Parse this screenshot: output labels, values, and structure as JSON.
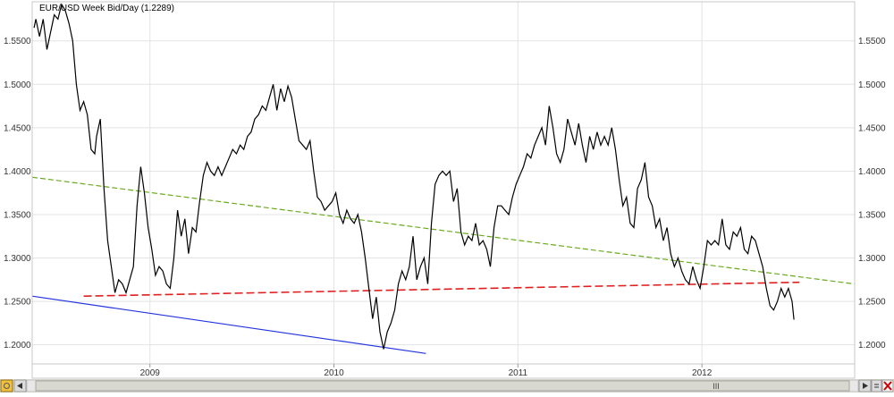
{
  "chart_data": {
    "type": "line",
    "title": "EUR/USD Week Bid/Day (1.2289)",
    "xlabel": "",
    "ylabel": "",
    "xlim": [
      2008.36,
      2012.83
    ],
    "ylim": [
      1.178,
      1.595
    ],
    "x_ticks": [
      {
        "x": 2009.0,
        "label": "2009"
      },
      {
        "x": 2010.0,
        "label": "2010"
      },
      {
        "x": 2011.0,
        "label": "2011"
      },
      {
        "x": 2012.0,
        "label": "2012"
      }
    ],
    "y_ticks": [
      {
        "y": 1.2,
        "label": "1.2000"
      },
      {
        "y": 1.25,
        "label": "1.2500"
      },
      {
        "y": 1.3,
        "label": "1.3000"
      },
      {
        "y": 1.35,
        "label": "1.3500"
      },
      {
        "y": 1.4,
        "label": "1.4000"
      },
      {
        "y": 1.45,
        "label": "1.4500"
      },
      {
        "y": 1.5,
        "label": "1.5000"
      },
      {
        "y": 1.55,
        "label": "1.5500"
      }
    ],
    "grid": true,
    "series": [
      {
        "kind": "price",
        "color": "#000000",
        "points": [
          [
            2008.37,
            1.565
          ],
          [
            2008.38,
            1.575
          ],
          [
            2008.4,
            1.555
          ],
          [
            2008.42,
            1.575
          ],
          [
            2008.44,
            1.54
          ],
          [
            2008.46,
            1.56
          ],
          [
            2008.48,
            1.58
          ],
          [
            2008.5,
            1.575
          ],
          [
            2008.52,
            1.592
          ],
          [
            2008.54,
            1.585
          ],
          [
            2008.56,
            1.57
          ],
          [
            2008.58,
            1.55
          ],
          [
            2008.6,
            1.5
          ],
          [
            2008.62,
            1.47
          ],
          [
            2008.64,
            1.48
          ],
          [
            2008.66,
            1.465
          ],
          [
            2008.68,
            1.425
          ],
          [
            2008.7,
            1.42
          ],
          [
            2008.71,
            1.44
          ],
          [
            2008.73,
            1.46
          ],
          [
            2008.75,
            1.38
          ],
          [
            2008.77,
            1.32
          ],
          [
            2008.79,
            1.29
          ],
          [
            2008.81,
            1.26
          ],
          [
            2008.83,
            1.275
          ],
          [
            2008.85,
            1.27
          ],
          [
            2008.87,
            1.26
          ],
          [
            2008.89,
            1.275
          ],
          [
            2008.91,
            1.29
          ],
          [
            2008.93,
            1.36
          ],
          [
            2008.95,
            1.405
          ],
          [
            2008.97,
            1.375
          ],
          [
            2008.99,
            1.335
          ],
          [
            2009.01,
            1.31
          ],
          [
            2009.03,
            1.28
          ],
          [
            2009.05,
            1.29
          ],
          [
            2009.07,
            1.285
          ],
          [
            2009.09,
            1.27
          ],
          [
            2009.11,
            1.265
          ],
          [
            2009.13,
            1.3
          ],
          [
            2009.15,
            1.355
          ],
          [
            2009.17,
            1.325
          ],
          [
            2009.19,
            1.345
          ],
          [
            2009.21,
            1.305
          ],
          [
            2009.23,
            1.335
          ],
          [
            2009.25,
            1.33
          ],
          [
            2009.27,
            1.365
          ],
          [
            2009.29,
            1.395
          ],
          [
            2009.31,
            1.41
          ],
          [
            2009.33,
            1.4
          ],
          [
            2009.35,
            1.395
          ],
          [
            2009.37,
            1.405
          ],
          [
            2009.39,
            1.395
          ],
          [
            2009.41,
            1.405
          ],
          [
            2009.43,
            1.415
          ],
          [
            2009.45,
            1.425
          ],
          [
            2009.47,
            1.42
          ],
          [
            2009.49,
            1.43
          ],
          [
            2009.51,
            1.425
          ],
          [
            2009.53,
            1.44
          ],
          [
            2009.55,
            1.445
          ],
          [
            2009.57,
            1.46
          ],
          [
            2009.59,
            1.465
          ],
          [
            2009.61,
            1.475
          ],
          [
            2009.63,
            1.47
          ],
          [
            2009.65,
            1.485
          ],
          [
            2009.67,
            1.5
          ],
          [
            2009.69,
            1.47
          ],
          [
            2009.71,
            1.495
          ],
          [
            2009.73,
            1.48
          ],
          [
            2009.75,
            1.498
          ],
          [
            2009.77,
            1.485
          ],
          [
            2009.79,
            1.46
          ],
          [
            2009.81,
            1.435
          ],
          [
            2009.83,
            1.43
          ],
          [
            2009.85,
            1.425
          ],
          [
            2009.87,
            1.435
          ],
          [
            2009.89,
            1.4
          ],
          [
            2009.91,
            1.37
          ],
          [
            2009.93,
            1.365
          ],
          [
            2009.95,
            1.355
          ],
          [
            2009.97,
            1.36
          ],
          [
            2009.99,
            1.365
          ],
          [
            2010.01,
            1.375
          ],
          [
            2010.03,
            1.35
          ],
          [
            2010.05,
            1.34
          ],
          [
            2010.07,
            1.355
          ],
          [
            2010.09,
            1.345
          ],
          [
            2010.11,
            1.34
          ],
          [
            2010.13,
            1.35
          ],
          [
            2010.15,
            1.33
          ],
          [
            2010.17,
            1.3
          ],
          [
            2010.19,
            1.265
          ],
          [
            2010.21,
            1.23
          ],
          [
            2010.23,
            1.255
          ],
          [
            2010.25,
            1.215
          ],
          [
            2010.27,
            1.195
          ],
          [
            2010.29,
            1.215
          ],
          [
            2010.31,
            1.225
          ],
          [
            2010.33,
            1.24
          ],
          [
            2010.35,
            1.27
          ],
          [
            2010.37,
            1.285
          ],
          [
            2010.39,
            1.275
          ],
          [
            2010.41,
            1.29
          ],
          [
            2010.43,
            1.325
          ],
          [
            2010.45,
            1.275
          ],
          [
            2010.47,
            1.29
          ],
          [
            2010.49,
            1.3
          ],
          [
            2010.51,
            1.27
          ],
          [
            2010.53,
            1.34
          ],
          [
            2010.55,
            1.385
          ],
          [
            2010.57,
            1.395
          ],
          [
            2010.59,
            1.4
          ],
          [
            2010.61,
            1.395
          ],
          [
            2010.63,
            1.4
          ],
          [
            2010.65,
            1.365
          ],
          [
            2010.67,
            1.38
          ],
          [
            2010.69,
            1.33
          ],
          [
            2010.71,
            1.315
          ],
          [
            2010.73,
            1.325
          ],
          [
            2010.75,
            1.32
          ],
          [
            2010.77,
            1.34
          ],
          [
            2010.79,
            1.315
          ],
          [
            2010.81,
            1.32
          ],
          [
            2010.83,
            1.31
          ],
          [
            2010.85,
            1.29
          ],
          [
            2010.87,
            1.335
          ],
          [
            2010.89,
            1.36
          ],
          [
            2010.91,
            1.36
          ],
          [
            2010.93,
            1.355
          ],
          [
            2010.95,
            1.35
          ],
          [
            2010.97,
            1.37
          ],
          [
            2010.99,
            1.385
          ],
          [
            2011.01,
            1.395
          ],
          [
            2011.03,
            1.405
          ],
          [
            2011.05,
            1.42
          ],
          [
            2011.07,
            1.415
          ],
          [
            2011.09,
            1.43
          ],
          [
            2011.11,
            1.44
          ],
          [
            2011.13,
            1.45
          ],
          [
            2011.15,
            1.43
          ],
          [
            2011.17,
            1.475
          ],
          [
            2011.19,
            1.45
          ],
          [
            2011.21,
            1.42
          ],
          [
            2011.23,
            1.41
          ],
          [
            2011.25,
            1.425
          ],
          [
            2011.27,
            1.46
          ],
          [
            2011.29,
            1.445
          ],
          [
            2011.31,
            1.43
          ],
          [
            2011.33,
            1.455
          ],
          [
            2011.35,
            1.43
          ],
          [
            2011.37,
            1.41
          ],
          [
            2011.39,
            1.44
          ],
          [
            2011.41,
            1.425
          ],
          [
            2011.43,
            1.445
          ],
          [
            2011.45,
            1.43
          ],
          [
            2011.47,
            1.44
          ],
          [
            2011.49,
            1.43
          ],
          [
            2011.51,
            1.45
          ],
          [
            2011.53,
            1.425
          ],
          [
            2011.55,
            1.39
          ],
          [
            2011.57,
            1.36
          ],
          [
            2011.59,
            1.37
          ],
          [
            2011.61,
            1.34
          ],
          [
            2011.63,
            1.335
          ],
          [
            2011.65,
            1.38
          ],
          [
            2011.67,
            1.39
          ],
          [
            2011.69,
            1.41
          ],
          [
            2011.71,
            1.37
          ],
          [
            2011.73,
            1.36
          ],
          [
            2011.75,
            1.335
          ],
          [
            2011.77,
            1.345
          ],
          [
            2011.79,
            1.32
          ],
          [
            2011.81,
            1.335
          ],
          [
            2011.83,
            1.305
          ],
          [
            2011.85,
            1.29
          ],
          [
            2011.87,
            1.3
          ],
          [
            2011.89,
            1.285
          ],
          [
            2011.91,
            1.275
          ],
          [
            2011.93,
            1.27
          ],
          [
            2011.95,
            1.29
          ],
          [
            2011.97,
            1.275
          ],
          [
            2011.99,
            1.265
          ],
          [
            2012.01,
            1.29
          ],
          [
            2012.03,
            1.32
          ],
          [
            2012.05,
            1.315
          ],
          [
            2012.07,
            1.32
          ],
          [
            2012.09,
            1.315
          ],
          [
            2012.11,
            1.345
          ],
          [
            2012.13,
            1.315
          ],
          [
            2012.15,
            1.31
          ],
          [
            2012.17,
            1.33
          ],
          [
            2012.19,
            1.325
          ],
          [
            2012.21,
            1.335
          ],
          [
            2012.23,
            1.31
          ],
          [
            2012.25,
            1.305
          ],
          [
            2012.27,
            1.325
          ],
          [
            2012.29,
            1.32
          ],
          [
            2012.31,
            1.305
          ],
          [
            2012.33,
            1.29
          ],
          [
            2012.35,
            1.265
          ],
          [
            2012.37,
            1.245
          ],
          [
            2012.39,
            1.24
          ],
          [
            2012.41,
            1.25
          ],
          [
            2012.43,
            1.265
          ],
          [
            2012.45,
            1.255
          ],
          [
            2012.47,
            1.265
          ],
          [
            2012.49,
            1.25
          ],
          [
            2012.5,
            1.229
          ]
        ]
      },
      {
        "kind": "trendline",
        "color": "#6aaa1e",
        "dashed": true,
        "points": [
          [
            2008.36,
            1.393
          ],
          [
            2012.83,
            1.27
          ]
        ]
      },
      {
        "kind": "trendline",
        "color": "#e02020",
        "dashed": true,
        "points": [
          [
            2008.64,
            1.256
          ],
          [
            2012.53,
            1.272
          ]
        ]
      },
      {
        "kind": "trendline",
        "color": "#2233dd",
        "dashed": false,
        "points": [
          [
            2008.36,
            1.256
          ],
          [
            2010.5,
            1.19
          ]
        ]
      }
    ]
  },
  "toolbar": {
    "scroll_thumb_label": "III"
  }
}
